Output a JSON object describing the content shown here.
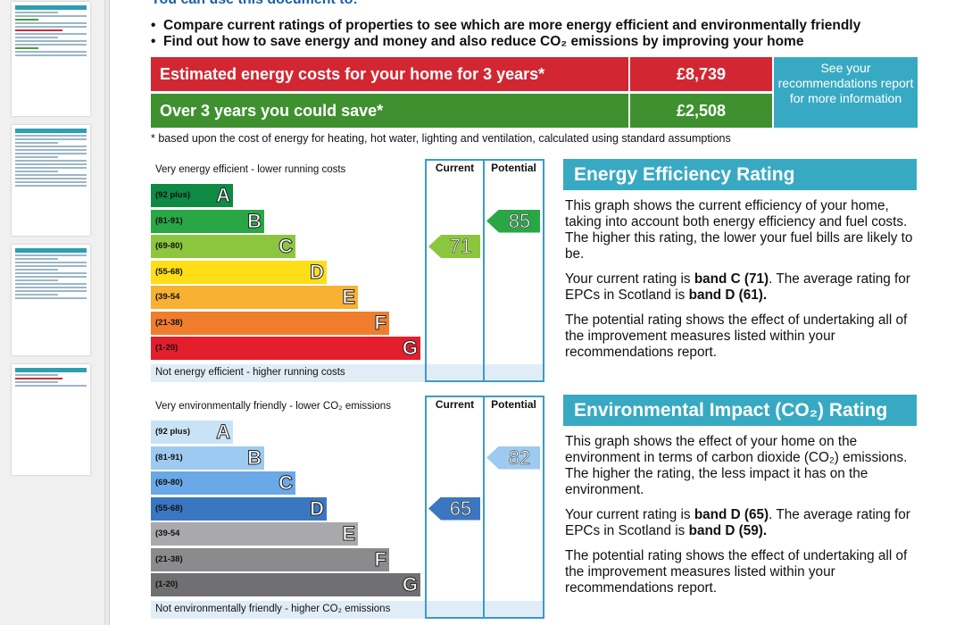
{
  "intro": {
    "heading": "You can use this document to:",
    "bullets": [
      "Compare current ratings of properties to see which are more energy efficient and environmentally friendly",
      "Find out how to save energy and money and also reduce CO₂ emissions by improving your home"
    ]
  },
  "costs": {
    "estimated_label": "Estimated energy costs for your home for 3 years*",
    "estimated_value": "£8,739",
    "save_label": "Over 3 years you could save*",
    "save_value": "£2,508",
    "see_text": "See your recommendations report for more information",
    "footnote": "* based upon the cost of energy for heating, hot water, lighting and ventilation, calculated using standard assumptions"
  },
  "energy_chart": {
    "top_text": "Very energy efficient - lower running costs",
    "bottom_text": "Not energy efficient - higher running costs",
    "current_header": "Current",
    "potential_header": "Potential",
    "bands": [
      {
        "range": "(92 plus)",
        "letter": "A",
        "color": "#0e8a45"
      },
      {
        "range": "(81-91)",
        "letter": "B",
        "color": "#29a745"
      },
      {
        "range": "(69-80)",
        "letter": "C",
        "color": "#8cc63f"
      },
      {
        "range": "(55-68)",
        "letter": "D",
        "color": "#ffde17"
      },
      {
        "range": "(39-54",
        "letter": "E",
        "color": "#f8b133"
      },
      {
        "range": "(21-38)",
        "letter": "F",
        "color": "#f07d2b"
      },
      {
        "range": "(1-20)",
        "letter": "G",
        "color": "#e31e2d"
      }
    ],
    "current_value": "71",
    "current_band_index": 2,
    "current_color": "#8cc63f",
    "potential_value": "85",
    "potential_band_index": 1,
    "potential_color": "#29a745"
  },
  "env_chart": {
    "top_text": "Very environmentally friendly - lower CO₂ emissions",
    "bottom_text": "Not environmentally friendly - higher CO₂ emissions",
    "current_header": "Current",
    "potential_header": "Potential",
    "bands": [
      {
        "range": "(92 plus)",
        "letter": "A",
        "color": "#c9e3f6"
      },
      {
        "range": "(81-91)",
        "letter": "B",
        "color": "#9dcaf0"
      },
      {
        "range": "(69-80)",
        "letter": "C",
        "color": "#6aa8e8"
      },
      {
        "range": "(55-68)",
        "letter": "D",
        "color": "#3b77c1"
      },
      {
        "range": "(39-54",
        "letter": "E",
        "color": "#a9a9ab"
      },
      {
        "range": "(21-38)",
        "letter": "F",
        "color": "#8b8b8d"
      },
      {
        "range": "(1-20)",
        "letter": "G",
        "color": "#707072"
      }
    ],
    "current_value": "65",
    "current_band_index": 3,
    "current_color": "#3b77c1",
    "potential_value": "82",
    "potential_band_index": 1,
    "potential_color": "#9dcaf0"
  },
  "energy_panel": {
    "title": "Energy Efficiency Rating",
    "p1": "This graph shows the current efficiency of your home, taking into account both energy efficiency and fuel costs. The higher this rating, the lower your fuel bills are likely to be.",
    "p2_a": "Your current rating is ",
    "p2_b": "band C (71)",
    "p2_c": ". The average rating for EPCs in Scotland is ",
    "p2_d": "band D (61).",
    "p3": "The potential rating shows the effect of undertaking all of the improvement measures listed within your recommendations report."
  },
  "env_panel": {
    "title": "Environmental Impact (CO₂) Rating",
    "p1": "This graph shows the effect of your home on the environment in terms of carbon dioxide (CO₂) emissions. The higher the rating, the less impact it has on the environment.",
    "p2_a": "Your current rating is ",
    "p2_b": "band D (65)",
    "p2_c": ". The average rating for EPCs in Scotland is ",
    "p2_d": "band D (59).",
    "p3": "The potential rating shows the effect of undertaking all of the improvement measures listed within your recommendations report."
  }
}
